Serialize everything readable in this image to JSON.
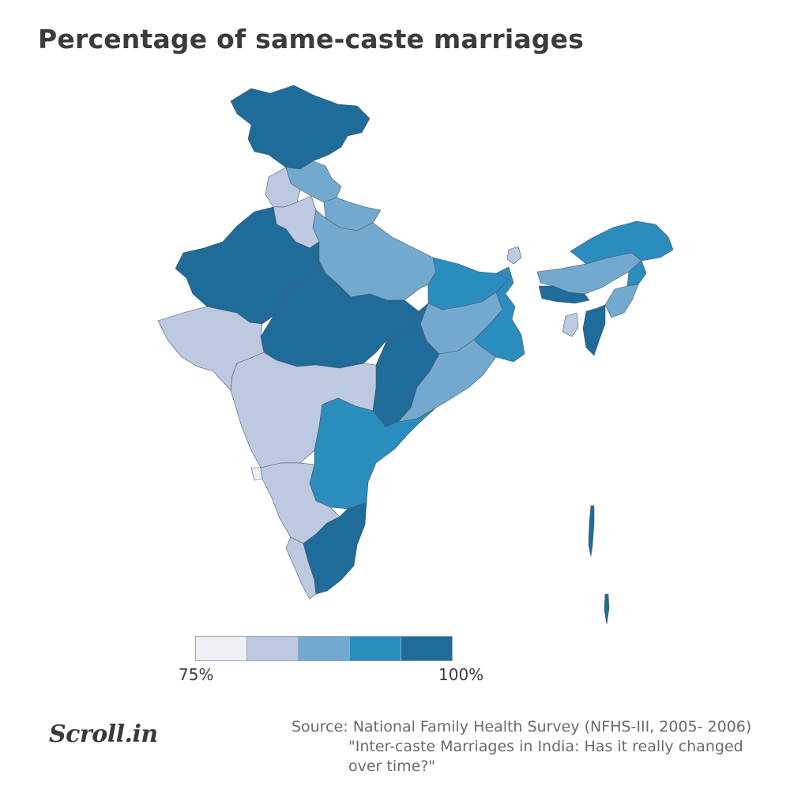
{
  "title": "Percentage of same-caste marriages",
  "legend": {
    "min_label": "75%",
    "max_label": "100%",
    "colors": [
      "#efeff6",
      "#bdc9e1",
      "#74a9cf",
      "#2b8cbe",
      "#1f6b9a"
    ]
  },
  "colors": {
    "bin1": "#efeff6",
    "bin2": "#bdc9e1",
    "bin3": "#74a9cf",
    "bin4": "#2b8cbe",
    "bin5": "#1f6b9a",
    "border": "#4a5a66"
  },
  "source": {
    "line1": "Source: National Family Health Survey (NFHS-III, 2005- 2006)",
    "line2": "\"Inter-caste Marriages in India: Has it really changed",
    "line3": "over time?\""
  },
  "logo": "Scroll.in"
}
